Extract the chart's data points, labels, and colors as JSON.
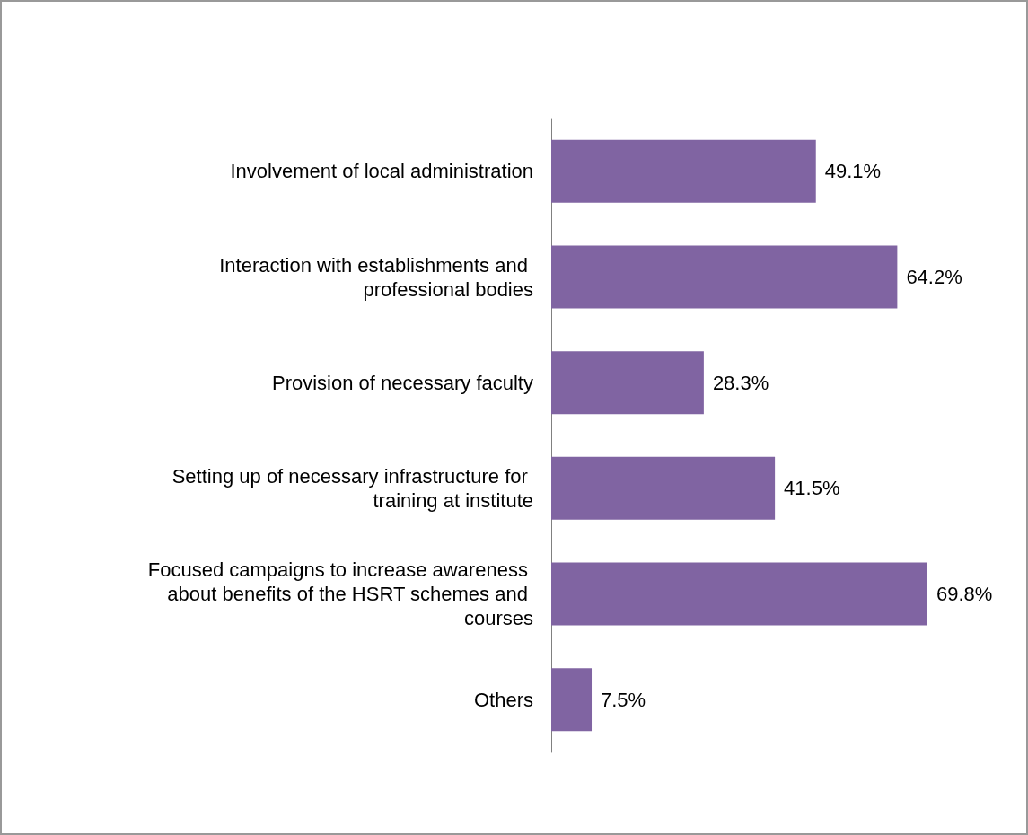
{
  "chart_data": {
    "type": "bar",
    "orientation": "horizontal",
    "categories": [
      "Involvement of local administration",
      "Interaction with establishments and professional bodies",
      "Provision of necessary faculty",
      "Setting up of necessary infrastructure for training at institute",
      "Focused campaigns to increase awareness about benefits of the HSRT schemes and courses",
      "Others"
    ],
    "values": [
      49.1,
      64.2,
      28.3,
      41.5,
      69.8,
      7.5
    ],
    "value_labels": [
      "49.1%",
      "64.2%",
      "28.3%",
      "41.5%",
      "69.8%",
      "7.5%"
    ],
    "color": "#8064a2"
  }
}
